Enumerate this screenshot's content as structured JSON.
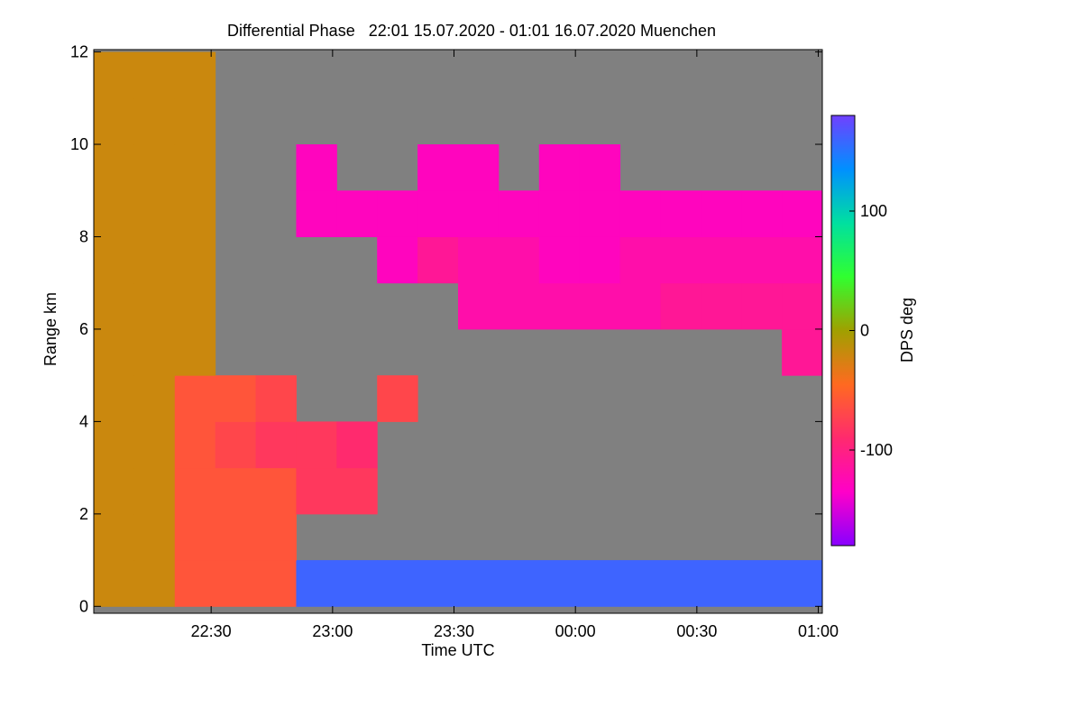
{
  "chart_data": {
    "type": "heatmap",
    "title": "Differential Phase   22:01 15.07.2020 - 01:01 16.07.2020 Muenchen",
    "xlabel": "Time UTC",
    "ylabel": "Range km",
    "colorbar_label": "DPS deg",
    "x": [
      1,
      11,
      21,
      31,
      41,
      51,
      61,
      71,
      81,
      91,
      101,
      111,
      121,
      131,
      141,
      151,
      161,
      171,
      181
    ],
    "y": [
      0,
      1,
      2,
      3,
      4,
      5,
      6,
      7,
      8,
      9,
      10,
      11,
      12
    ],
    "z": [
      [
        -20,
        -20,
        -60,
        -60,
        -60,
        160,
        160,
        160,
        160,
        160,
        160,
        160,
        160,
        160,
        160,
        160,
        160,
        160
      ],
      [
        -20,
        -20,
        -60,
        -60,
        -60,
        null,
        null,
        null,
        null,
        null,
        null,
        null,
        null,
        null,
        null,
        null,
        null,
        null
      ],
      [
        -20,
        -20,
        -60,
        -60,
        -60,
        -80,
        -80,
        null,
        null,
        null,
        null,
        null,
        null,
        null,
        null,
        null,
        null,
        null
      ],
      [
        -20,
        -20,
        -60,
        -70,
        -80,
        -80,
        -90,
        null,
        null,
        null,
        null,
        null,
        null,
        null,
        null,
        null,
        null,
        null
      ],
      [
        -20,
        -20,
        -60,
        -60,
        -70,
        null,
        null,
        -70,
        null,
        null,
        null,
        null,
        null,
        null,
        null,
        null,
        null,
        null
      ],
      [
        -20,
        -20,
        -20,
        null,
        null,
        null,
        null,
        null,
        null,
        null,
        null,
        null,
        null,
        null,
        null,
        null,
        null,
        -110
      ],
      [
        -20,
        -20,
        -20,
        null,
        null,
        null,
        null,
        null,
        null,
        -120,
        -120,
        -120,
        -120,
        -120,
        -110,
        -110,
        -110,
        -110
      ],
      [
        -20,
        -20,
        -20,
        null,
        null,
        null,
        null,
        -130,
        -110,
        -120,
        -120,
        -130,
        -130,
        -120,
        -120,
        -120,
        -120,
        -120
      ],
      [
        -20,
        -20,
        -20,
        null,
        null,
        -130,
        -130,
        -130,
        -130,
        -130,
        -130,
        -130,
        -130,
        -130,
        -130,
        -130,
        -130,
        -130
      ],
      [
        -20,
        -20,
        -20,
        null,
        null,
        -130,
        null,
        null,
        -130,
        -130,
        null,
        -130,
        -130,
        null,
        null,
        null,
        null,
        null
      ],
      [
        -20,
        -20,
        -20,
        null,
        null,
        null,
        null,
        null,
        null,
        null,
        null,
        null,
        null,
        null,
        null,
        null,
        null,
        null
      ],
      [
        -20,
        -20,
        -20,
        null,
        null,
        null,
        null,
        null,
        null,
        null,
        null,
        null,
        null,
        null,
        null,
        null,
        null,
        null
      ]
    ],
    "xlim": [
      1,
      181
    ],
    "xticks": [
      {
        "value": 30,
        "label": "22:30"
      },
      {
        "value": 60,
        "label": "23:00"
      },
      {
        "value": 90,
        "label": "23:30"
      },
      {
        "value": 120,
        "label": "00:00"
      },
      {
        "value": 150,
        "label": "00:30"
      },
      {
        "value": 180,
        "label": "01:00"
      }
    ],
    "ylim": [
      -0.15,
      12.05
    ],
    "yticks": [
      0,
      2,
      4,
      6,
      8,
      10,
      12
    ],
    "zlim": [
      -180,
      180
    ],
    "zticks": [
      -100,
      0,
      100
    ],
    "colormap": [
      "#8800ff",
      "#ff00c8",
      "#ff2a6e",
      "#ff6a20",
      "#a0a000",
      "#30ff30",
      "#00e0a0",
      "#0090ff",
      "#7040ff"
    ],
    "background": "#808080"
  }
}
